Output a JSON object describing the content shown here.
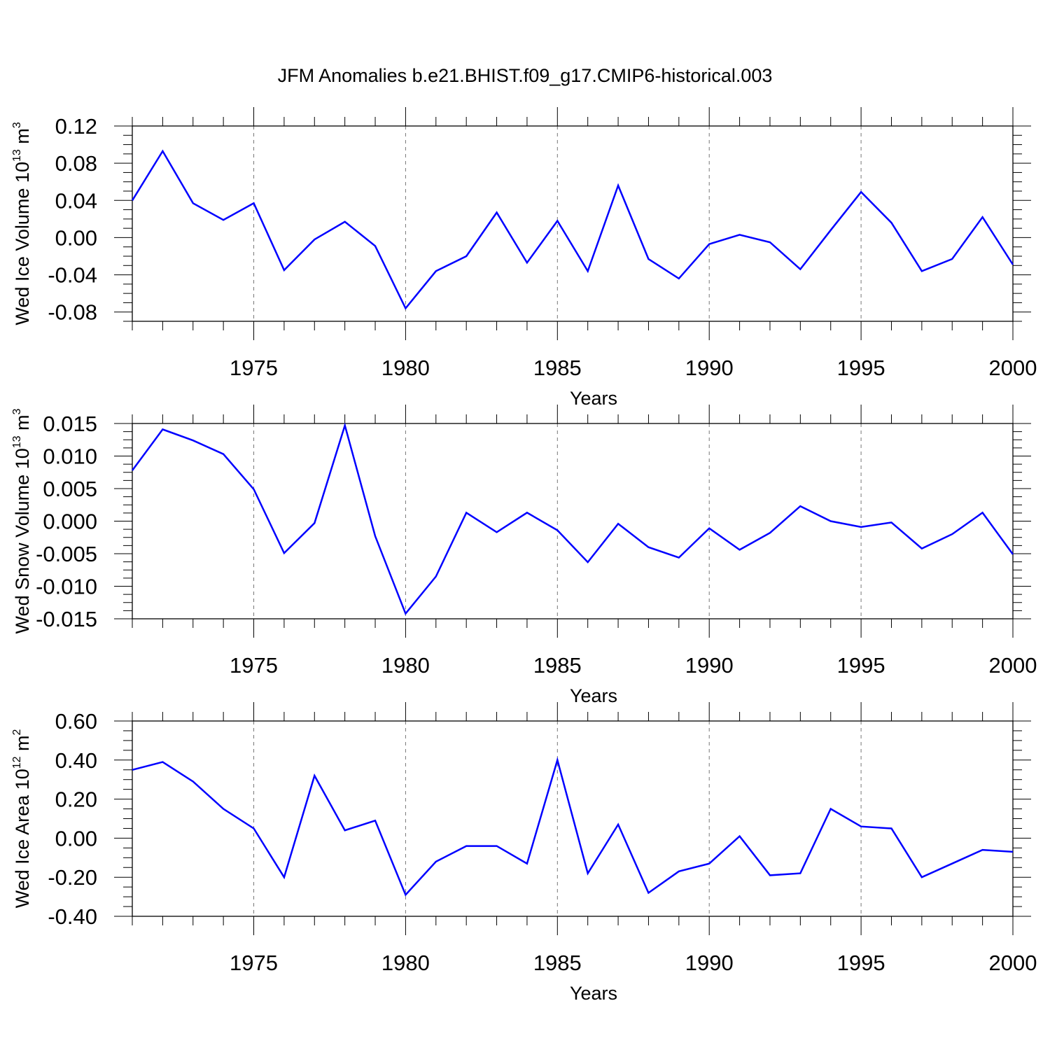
{
  "title": "JFM Anomalies b.e21.BHIST.f09_g17.CMIP6-historical.003",
  "chart_data": [
    {
      "type": "line",
      "xlabel": "Years",
      "ylabel_text": "Wed Ice Volume 10",
      "ylabel_exp": "13",
      "ylabel_unit": " m",
      "ylabel_unit_exp": "3",
      "xlim": [
        1971,
        2000
      ],
      "ylim": [
        -0.09,
        0.12
      ],
      "yticks": [
        0.12,
        0.08,
        0.04,
        0.0,
        -0.04,
        -0.08
      ],
      "ytick_labels": [
        "0.12",
        "0.08",
        "0.04",
        "0.00",
        "-0.04",
        "-0.08"
      ],
      "xticks": [
        1975,
        1980,
        1985,
        1990,
        1995,
        2000
      ],
      "xtick_labels": [
        "1975",
        "1980",
        "1985",
        "1990",
        "1995",
        "2000"
      ],
      "line_color": "#0000ff",
      "series": [
        {
          "name": "Wed Ice Volume",
          "x": [
            1971,
            1972,
            1973,
            1974,
            1975,
            1976,
            1977,
            1978,
            1979,
            1980,
            1981,
            1982,
            1983,
            1984,
            1985,
            1986,
            1987,
            1988,
            1989,
            1990,
            1991,
            1992,
            1993,
            1994,
            1995,
            1996,
            1997,
            1998,
            1999,
            2000
          ],
          "values": [
            0.04,
            0.093,
            0.037,
            0.019,
            0.037,
            -0.035,
            -0.002,
            0.017,
            -0.009,
            -0.076,
            -0.036,
            -0.02,
            0.027,
            -0.027,
            0.018,
            -0.036,
            0.056,
            -0.023,
            -0.044,
            -0.007,
            0.003,
            -0.005,
            -0.034,
            0.008,
            0.049,
            0.016,
            -0.036,
            -0.023,
            0.022,
            -0.029
          ]
        }
      ]
    },
    {
      "type": "line",
      "xlabel": "Years",
      "ylabel_text": "Wed Snow Volume 10",
      "ylabel_exp": "13",
      "ylabel_unit": " m",
      "ylabel_unit_exp": "3",
      "xlim": [
        1971,
        2000
      ],
      "ylim": [
        -0.015,
        0.015
      ],
      "yticks": [
        0.015,
        0.01,
        0.005,
        0.0,
        -0.005,
        -0.01,
        -0.015
      ],
      "ytick_labels": [
        "0.015",
        "0.010",
        "0.005",
        "0.000",
        "-0.005",
        "-0.010",
        "-0.015"
      ],
      "xticks": [
        1975,
        1980,
        1985,
        1990,
        1995,
        2000
      ],
      "xtick_labels": [
        "1975",
        "1980",
        "1985",
        "1990",
        "1995",
        "2000"
      ],
      "line_color": "#0000ff",
      "series": [
        {
          "name": "Wed Snow Volume",
          "x": [
            1971,
            1972,
            1973,
            1974,
            1975,
            1976,
            1977,
            1978,
            1979,
            1980,
            1981,
            1982,
            1983,
            1984,
            1985,
            1986,
            1987,
            1988,
            1989,
            1990,
            1991,
            1992,
            1993,
            1994,
            1995,
            1996,
            1997,
            1998,
            1999,
            2000
          ],
          "values": [
            0.0078,
            0.0141,
            0.0124,
            0.0103,
            0.0049,
            -0.0049,
            -0.0003,
            0.0147,
            -0.0023,
            -0.0142,
            -0.0085,
            0.0013,
            -0.0017,
            0.0013,
            -0.0014,
            -0.0063,
            -0.0004,
            -0.004,
            -0.0056,
            -0.0011,
            -0.0044,
            -0.0018,
            0.0023,
            0.0,
            -0.0009,
            -0.0002,
            -0.0042,
            -0.002,
            0.0013,
            -0.0051
          ]
        }
      ]
    },
    {
      "type": "line",
      "xlabel": "Years",
      "ylabel_text": "Wed Ice Area 10",
      "ylabel_exp": "12",
      "ylabel_unit": " m",
      "ylabel_unit_exp": "2",
      "xlim": [
        1971,
        2000
      ],
      "ylim": [
        -0.4,
        0.6
      ],
      "yticks": [
        0.6,
        0.4,
        0.2,
        0.0,
        -0.2,
        -0.4
      ],
      "ytick_labels": [
        "0.60",
        "0.40",
        "0.20",
        "0.00",
        "-0.20",
        "-0.40"
      ],
      "xticks": [
        1975,
        1980,
        1985,
        1990,
        1995,
        2000
      ],
      "xtick_labels": [
        "1975",
        "1980",
        "1985",
        "1990",
        "1995",
        "2000"
      ],
      "line_color": "#0000ff",
      "series": [
        {
          "name": "Wed Ice Area",
          "x": [
            1971,
            1972,
            1973,
            1974,
            1975,
            1976,
            1977,
            1978,
            1979,
            1980,
            1981,
            1982,
            1983,
            1984,
            1985,
            1986,
            1987,
            1988,
            1989,
            1990,
            1991,
            1992,
            1993,
            1994,
            1995,
            1996,
            1997,
            1998,
            1999,
            2000
          ],
          "values": [
            0.35,
            0.39,
            0.29,
            0.15,
            0.05,
            -0.2,
            0.32,
            0.04,
            0.09,
            -0.29,
            -0.12,
            -0.04,
            -0.04,
            -0.13,
            0.4,
            -0.18,
            0.07,
            -0.28,
            -0.17,
            -0.13,
            0.01,
            -0.19,
            -0.18,
            0.15,
            0.06,
            0.05,
            -0.2,
            -0.13,
            -0.06,
            -0.07
          ]
        }
      ]
    }
  ]
}
